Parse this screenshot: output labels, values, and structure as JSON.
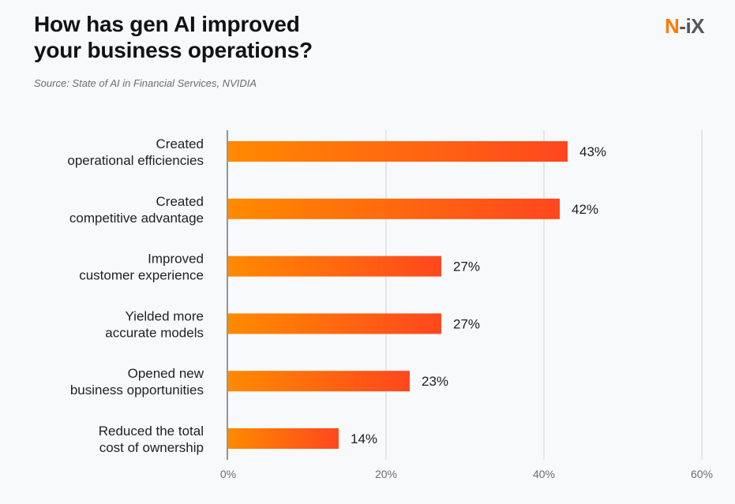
{
  "header": {
    "title_line1": "How has gen AI improved",
    "title_line2": "your business operations?",
    "source": "Source: State of AI in Financial Services, NVIDIA"
  },
  "logo": {
    "part1": "N",
    "part2": "-iX"
  },
  "colors": {
    "bar_gradient_start": "#ff8a00",
    "bar_gradient_end": "#ff471e",
    "logo_accent": "#ff7a00",
    "grid": "#d9dadd",
    "axis": "#7a7b7f"
  },
  "chart_data": {
    "type": "bar",
    "orientation": "horizontal",
    "title": "How has gen AI improved your business operations?",
    "subtitle": "Source: State of AI in Financial Services, NVIDIA",
    "categories": [
      [
        "Created",
        "operational efficiencies"
      ],
      [
        "Created",
        "competitive advantage"
      ],
      [
        "Improved",
        "customer experience"
      ],
      [
        "Yielded more",
        "accurate models"
      ],
      [
        "Opened new",
        "business opportunities"
      ],
      [
        "Reduced the total",
        "cost of ownership"
      ]
    ],
    "values": [
      43,
      42,
      27,
      27,
      23,
      14
    ],
    "value_labels": [
      "43%",
      "42%",
      "27%",
      "27%",
      "23%",
      "14%"
    ],
    "xlim": [
      0,
      60
    ],
    "xticks": [
      0,
      20,
      40,
      60
    ],
    "xtick_labels": [
      "0%",
      "20%",
      "40%",
      "60%"
    ],
    "xlabel": "",
    "ylabel": "",
    "grid": true,
    "legend": null
  }
}
